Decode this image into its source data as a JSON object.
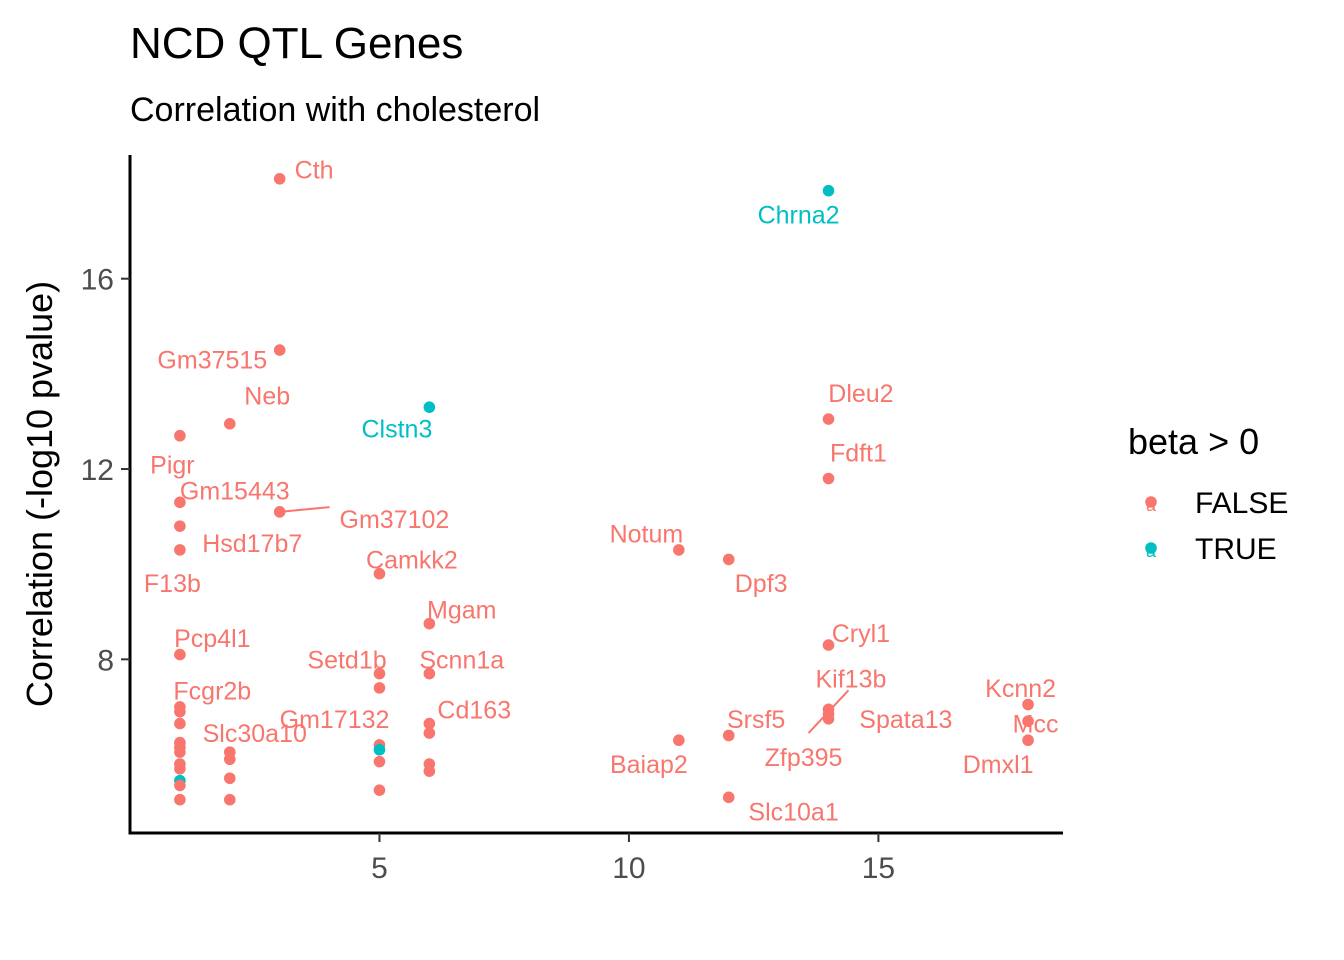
{
  "chart_data": {
    "type": "scatter",
    "title": "NCD QTL Genes",
    "subtitle": "Correlation with cholesterol",
    "xlabel": "",
    "ylabel": "Correlation (-log10 pvalue)",
    "xlim": [
      0,
      18.7
    ],
    "ylim": [
      4.35,
      18.6
    ],
    "x_ticks": [
      5,
      10,
      15
    ],
    "y_ticks": [
      8,
      12,
      16
    ],
    "grid": false,
    "legend": {
      "title": "beta > 0",
      "placement": "right",
      "key_glyph": "a",
      "entries": [
        {
          "label": "FALSE",
          "color": "#F8766D"
        },
        {
          "label": "TRUE",
          "color": "#00BFC4"
        }
      ]
    },
    "colors": {
      "FALSE": "#F8766D",
      "TRUE": "#00BFC4"
    },
    "points": [
      {
        "x": 3,
        "y": 18.1,
        "beta_pos": false
      },
      {
        "x": 14,
        "y": 17.85,
        "beta_pos": true
      },
      {
        "x": 3,
        "y": 14.5,
        "beta_pos": false
      },
      {
        "x": 6,
        "y": 13.3,
        "beta_pos": true
      },
      {
        "x": 2,
        "y": 12.95,
        "beta_pos": false
      },
      {
        "x": 14,
        "y": 13.05,
        "beta_pos": false
      },
      {
        "x": 1,
        "y": 12.7,
        "beta_pos": false
      },
      {
        "x": 14,
        "y": 11.8,
        "beta_pos": false
      },
      {
        "x": 1,
        "y": 11.3,
        "beta_pos": false
      },
      {
        "x": 3,
        "y": 11.1,
        "beta_pos": false
      },
      {
        "x": 1,
        "y": 10.8,
        "beta_pos": false
      },
      {
        "x": 1,
        "y": 10.3,
        "beta_pos": false
      },
      {
        "x": 11,
        "y": 10.3,
        "beta_pos": false
      },
      {
        "x": 12,
        "y": 10.1,
        "beta_pos": false
      },
      {
        "x": 5,
        "y": 9.8,
        "beta_pos": false
      },
      {
        "x": 6,
        "y": 8.75,
        "beta_pos": false
      },
      {
        "x": 14,
        "y": 8.3,
        "beta_pos": false
      },
      {
        "x": 1,
        "y": 8.1,
        "beta_pos": false
      },
      {
        "x": 5,
        "y": 7.7,
        "beta_pos": false
      },
      {
        "x": 6,
        "y": 7.7,
        "beta_pos": false
      },
      {
        "x": 5,
        "y": 7.4,
        "beta_pos": false
      },
      {
        "x": 18,
        "y": 7.05,
        "beta_pos": false
      },
      {
        "x": 1,
        "y": 7.0,
        "beta_pos": false
      },
      {
        "x": 1,
        "y": 6.9,
        "beta_pos": false
      },
      {
        "x": 14,
        "y": 6.95,
        "beta_pos": false
      },
      {
        "x": 14,
        "y": 6.85,
        "beta_pos": false
      },
      {
        "x": 14,
        "y": 6.75,
        "beta_pos": false
      },
      {
        "x": 18,
        "y": 6.7,
        "beta_pos": false
      },
      {
        "x": 1,
        "y": 6.65,
        "beta_pos": false
      },
      {
        "x": 6,
        "y": 6.65,
        "beta_pos": false
      },
      {
        "x": 6,
        "y": 6.45,
        "beta_pos": false
      },
      {
        "x": 12,
        "y": 6.4,
        "beta_pos": false
      },
      {
        "x": 11,
        "y": 6.3,
        "beta_pos": false
      },
      {
        "x": 18,
        "y": 6.3,
        "beta_pos": false
      },
      {
        "x": 1,
        "y": 6.25,
        "beta_pos": false
      },
      {
        "x": 1,
        "y": 6.15,
        "beta_pos": false
      },
      {
        "x": 5,
        "y": 6.2,
        "beta_pos": false
      },
      {
        "x": 5,
        "y": 6.1,
        "beta_pos": true
      },
      {
        "x": 1,
        "y": 6.05,
        "beta_pos": false
      },
      {
        "x": 2,
        "y": 6.05,
        "beta_pos": false
      },
      {
        "x": 2,
        "y": 5.9,
        "beta_pos": false
      },
      {
        "x": 5,
        "y": 5.85,
        "beta_pos": false
      },
      {
        "x": 1,
        "y": 5.8,
        "beta_pos": false
      },
      {
        "x": 6,
        "y": 5.8,
        "beta_pos": false
      },
      {
        "x": 1,
        "y": 5.7,
        "beta_pos": false
      },
      {
        "x": 6,
        "y": 5.65,
        "beta_pos": false
      },
      {
        "x": 2,
        "y": 5.5,
        "beta_pos": false
      },
      {
        "x": 1,
        "y": 5.45,
        "beta_pos": true
      },
      {
        "x": 1,
        "y": 5.35,
        "beta_pos": false
      },
      {
        "x": 5,
        "y": 5.25,
        "beta_pos": false
      },
      {
        "x": 12,
        "y": 5.1,
        "beta_pos": false
      },
      {
        "x": 1,
        "y": 5.05,
        "beta_pos": false
      },
      {
        "x": 2,
        "y": 5.05,
        "beta_pos": false
      }
    ],
    "labels": [
      {
        "text": "Cth",
        "x": 3.3,
        "y": 18.3,
        "anchor": "start",
        "beta_pos": false
      },
      {
        "text": "Chrna2",
        "x": 13.4,
        "y": 17.35,
        "anchor": "middle",
        "beta_pos": true
      },
      {
        "text": "Gm37515",
        "x": 1.65,
        "y": 14.3,
        "anchor": "middle",
        "beta_pos": false
      },
      {
        "text": "Clstn3",
        "x": 5.35,
        "y": 12.85,
        "anchor": "middle",
        "beta_pos": true
      },
      {
        "text": "Neb",
        "x": 2.75,
        "y": 13.55,
        "anchor": "middle",
        "beta_pos": false
      },
      {
        "text": "Dleu2",
        "x": 14.65,
        "y": 13.6,
        "anchor": "middle",
        "beta_pos": false
      },
      {
        "text": "Pigr",
        "x": 0.85,
        "y": 12.1,
        "anchor": "middle",
        "beta_pos": false
      },
      {
        "text": "Fdft1",
        "x": 14.6,
        "y": 12.35,
        "anchor": "middle",
        "beta_pos": false
      },
      {
        "text": "Gm15443",
        "x": 2.1,
        "y": 11.55,
        "anchor": "middle",
        "beta_pos": false
      },
      {
        "text": "Gm37102",
        "x": 5.3,
        "y": 10.95,
        "anchor": "middle",
        "beta_pos": false
      },
      {
        "text": "Hsd17b7",
        "x": 2.45,
        "y": 10.45,
        "anchor": "middle",
        "beta_pos": false
      },
      {
        "text": "F13b",
        "x": 0.85,
        "y": 9.6,
        "anchor": "middle",
        "beta_pos": false
      },
      {
        "text": "Notum",
        "x": 10.35,
        "y": 10.65,
        "anchor": "middle",
        "beta_pos": false
      },
      {
        "text": "Dpf3",
        "x": 12.65,
        "y": 9.6,
        "anchor": "middle",
        "beta_pos": false
      },
      {
        "text": "Camkk2",
        "x": 5.65,
        "y": 10.1,
        "anchor": "middle",
        "beta_pos": false
      },
      {
        "text": "Mgam",
        "x": 6.65,
        "y": 9.05,
        "anchor": "middle",
        "beta_pos": false
      },
      {
        "text": "Cryl1",
        "x": 14.65,
        "y": 8.55,
        "anchor": "middle",
        "beta_pos": false
      },
      {
        "text": "Pcp4l1",
        "x": 1.65,
        "y": 8.45,
        "anchor": "middle",
        "beta_pos": false
      },
      {
        "text": "Setd1b",
        "x": 4.35,
        "y": 8.0,
        "anchor": "middle",
        "beta_pos": false
      },
      {
        "text": "Scnn1a",
        "x": 6.65,
        "y": 8.0,
        "anchor": "middle",
        "beta_pos": false
      },
      {
        "text": "Kif13b",
        "x": 14.45,
        "y": 7.6,
        "anchor": "middle",
        "beta_pos": false
      },
      {
        "text": "Kcnn2",
        "x": 17.85,
        "y": 7.4,
        "anchor": "middle",
        "beta_pos": false
      },
      {
        "text": "Fcgr2b",
        "x": 1.65,
        "y": 7.35,
        "anchor": "middle",
        "beta_pos": false
      },
      {
        "text": "Cd163",
        "x": 6.9,
        "y": 6.95,
        "anchor": "middle",
        "beta_pos": false
      },
      {
        "text": "Srsf5",
        "x": 12.55,
        "y": 6.75,
        "anchor": "middle",
        "beta_pos": false
      },
      {
        "text": "Spata13",
        "x": 15.55,
        "y": 6.75,
        "anchor": "middle",
        "beta_pos": false
      },
      {
        "text": "Gm17132",
        "x": 4.1,
        "y": 6.75,
        "anchor": "middle",
        "beta_pos": false
      },
      {
        "text": "Mcc",
        "x": 18.15,
        "y": 6.65,
        "anchor": "middle",
        "beta_pos": false
      },
      {
        "text": "Slc30a10",
        "x": 2.5,
        "y": 6.45,
        "anchor": "middle",
        "beta_pos": false
      },
      {
        "text": "Zfp395",
        "x": 13.5,
        "y": 5.95,
        "anchor": "middle",
        "beta_pos": false
      },
      {
        "text": "Baiap2",
        "x": 10.4,
        "y": 5.8,
        "anchor": "middle",
        "beta_pos": false
      },
      {
        "text": "Dmxl1",
        "x": 17.4,
        "y": 5.8,
        "anchor": "middle",
        "beta_pos": false
      },
      {
        "text": "Slc10a1",
        "x": 13.3,
        "y": 4.8,
        "anchor": "middle",
        "beta_pos": false
      }
    ],
    "connectors": [
      {
        "x1": 3.0,
        "y1": 11.1,
        "x2": 4.0,
        "y2": 11.2
      },
      {
        "x1": 13.6,
        "y1": 6.45,
        "x2": 14.4,
        "y2": 7.35
      }
    ]
  }
}
